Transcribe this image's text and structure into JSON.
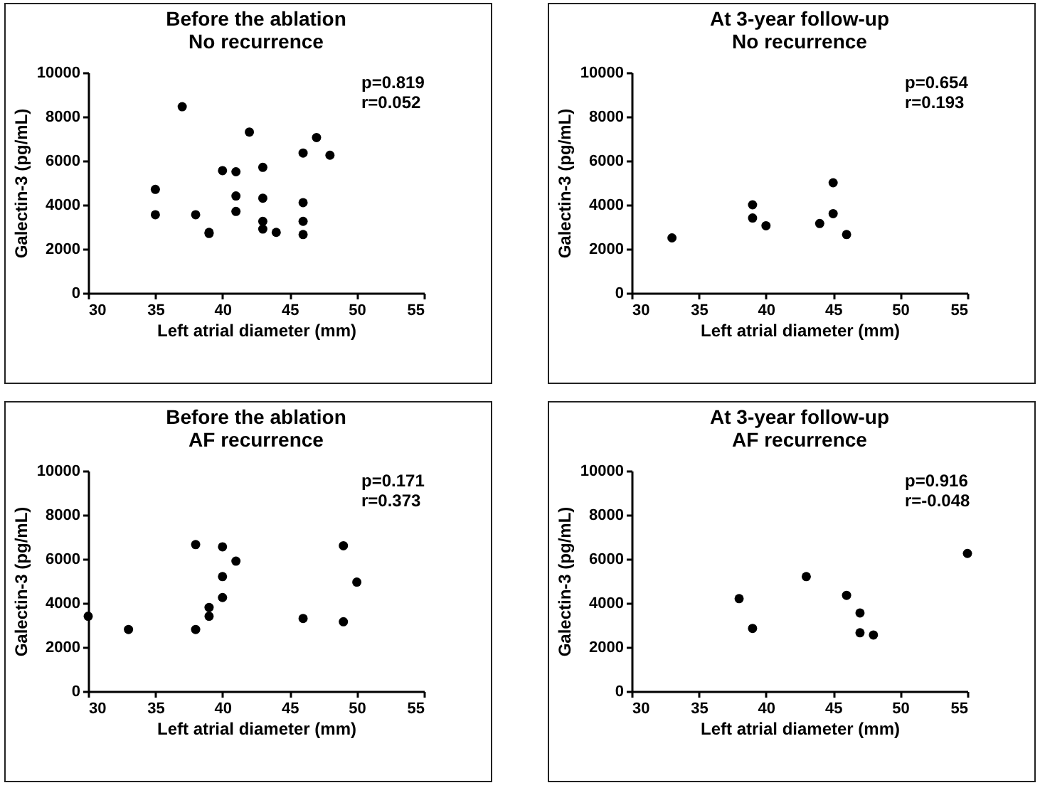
{
  "chart_data": [
    {
      "type": "scatter",
      "title": "Before the ablation",
      "subtitle": "No recurrence",
      "xlabel": "Left atrial diameter (mm)",
      "ylabel": "Galectin-3 (pg/mL)",
      "xlim": [
        30,
        55
      ],
      "xticks": [
        30,
        35,
        40,
        45,
        50,
        55
      ],
      "ylim": [
        0,
        10000
      ],
      "yticks": [
        0,
        2000,
        4000,
        6000,
        8000,
        10000
      ],
      "grid": false,
      "marker": "circle",
      "annotations": [
        "p=0.819",
        "r=0.052"
      ],
      "series": [
        {
          "color": "#000000",
          "x": [
            35,
            35,
            37,
            38,
            39,
            39,
            40,
            41,
            41,
            41,
            42,
            43,
            43,
            43,
            43,
            44,
            46,
            46,
            46,
            46,
            47,
            48
          ],
          "values": [
            4700,
            3550,
            8450,
            3550,
            2700,
            2750,
            5550,
            5500,
            4400,
            3700,
            7300,
            5700,
            4300,
            3250,
            2900,
            2750,
            6350,
            4100,
            3250,
            2650,
            7050,
            6250
          ]
        }
      ]
    },
    {
      "type": "scatter",
      "title": "At 3-year follow-up",
      "subtitle": "No recurrence",
      "xlabel": "Left atrial diameter (mm)",
      "ylabel": "Galectin-3 (pg/mL)",
      "xlim": [
        30,
        55
      ],
      "xticks": [
        30,
        35,
        40,
        45,
        50,
        55
      ],
      "ylim": [
        0,
        10000
      ],
      "yticks": [
        0,
        2000,
        4000,
        6000,
        8000,
        10000
      ],
      "grid": false,
      "marker": "circle",
      "annotations": [
        "p=0.654",
        "r=0.193"
      ],
      "series": [
        {
          "color": "#000000",
          "x": [
            33,
            39,
            39,
            40,
            44,
            45,
            45,
            46
          ],
          "values": [
            2500,
            4000,
            3400,
            3050,
            3150,
            5000,
            3600,
            2650
          ]
        }
      ]
    },
    {
      "type": "scatter",
      "title": "Before the ablation",
      "subtitle": "AF recurrence",
      "xlabel": "Left atrial diameter (mm)",
      "ylabel": "Galectin-3 (pg/mL)",
      "xlim": [
        30,
        55
      ],
      "xticks": [
        30,
        35,
        40,
        45,
        50,
        55
      ],
      "ylim": [
        0,
        10000
      ],
      "yticks": [
        0,
        2000,
        4000,
        6000,
        8000,
        10000
      ],
      "grid": false,
      "marker": "circle",
      "annotations": [
        "p=0.171",
        "r=0.373"
      ],
      "series": [
        {
          "color": "#000000",
          "x": [
            30,
            33,
            38,
            38,
            39,
            39,
            40,
            40,
            40,
            41,
            46,
            49,
            49,
            50
          ],
          "values": [
            3400,
            2800,
            6650,
            2800,
            3800,
            3400,
            6550,
            5200,
            4250,
            5900,
            3300,
            6600,
            3150,
            4950
          ]
        }
      ]
    },
    {
      "type": "scatter",
      "title": "At 3-year follow-up",
      "subtitle": "AF recurrence",
      "xlabel": "Left atrial diameter (mm)",
      "ylabel": "Galectin-3 (pg/mL)",
      "xlim": [
        30,
        55
      ],
      "xticks": [
        30,
        35,
        40,
        45,
        50,
        55
      ],
      "ylim": [
        0,
        10000
      ],
      "yticks": [
        0,
        2000,
        4000,
        6000,
        8000,
        10000
      ],
      "grid": false,
      "marker": "circle",
      "annotations": [
        "p=0.916",
        "r=-0.048"
      ],
      "series": [
        {
          "color": "#000000",
          "x": [
            38,
            39,
            43,
            46,
            47,
            47,
            48,
            55
          ],
          "values": [
            4200,
            2850,
            5200,
            4350,
            3550,
            2650,
            2550,
            6250
          ]
        }
      ]
    }
  ]
}
